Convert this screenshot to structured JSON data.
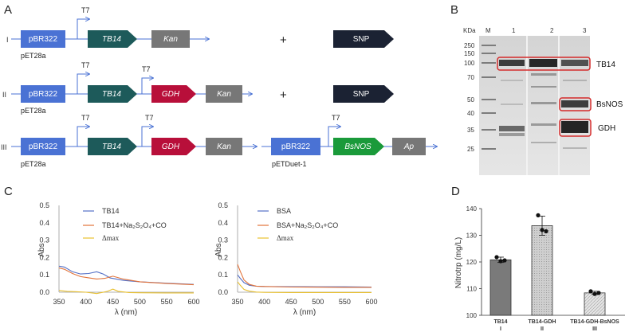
{
  "panel_labels": {
    "a": "A",
    "b": "B",
    "c": "C",
    "d": "D"
  },
  "panel_a": {
    "row_markers": [
      "I",
      "II",
      "III"
    ],
    "promoter": "T7",
    "backbone": "pBR322",
    "plasmid1": "pET28a",
    "plasmid2": "pETDuet-1",
    "genes": {
      "tb14": "TB14",
      "kan": "Kan",
      "gdh": "GDH",
      "bsnos": "BsNOS",
      "ap": "Ap"
    },
    "plus": "+",
    "snp": "SNP",
    "colors": {
      "backbone": "#4a72d4",
      "tb14": "#1d5a5a",
      "kan": "#777777",
      "gdh": "#b80f3a",
      "bsnos": "#1a9a3a",
      "ap": "#777777",
      "snp": "#1b2233"
    }
  },
  "panel_b": {
    "unit": "KDa",
    "marker_lane": "M",
    "lanes": [
      "1",
      "2",
      "3"
    ],
    "ladder": [
      "250",
      "150",
      "100",
      "70",
      "50",
      "40",
      "35",
      "25"
    ],
    "band_labels": [
      "TB14",
      "BsNOS",
      "GDH"
    ],
    "highlight_color": "#d42a2a"
  },
  "chart_data": [
    {
      "type": "line",
      "xlabel": "λ  (nm)",
      "ylabel": "Abs",
      "xlim": [
        350,
        600
      ],
      "ylim": [
        0,
        0.5
      ],
      "xticks": [
        "350",
        "400",
        "450",
        "500",
        "550",
        "600"
      ],
      "yticks": [
        "0.0",
        "0.1",
        "0.2",
        "0.3",
        "0.4",
        "0.5"
      ],
      "legend_placement": "top-center",
      "series": [
        {
          "name": "TB14",
          "color": "#5470c6",
          "x": [
            350,
            360,
            375,
            390,
            405,
            420,
            432,
            445,
            470,
            500,
            550,
            600
          ],
          "y": [
            0.15,
            0.145,
            0.118,
            0.105,
            0.108,
            0.118,
            0.105,
            0.082,
            0.068,
            0.06,
            0.052,
            0.045
          ]
        },
        {
          "name": "TB14+Na₂S₂O₄+CO",
          "color": "#e2733a",
          "x": [
            350,
            360,
            375,
            390,
            405,
            420,
            435,
            450,
            470,
            500,
            550,
            600
          ],
          "y": [
            0.14,
            0.132,
            0.108,
            0.09,
            0.083,
            0.076,
            0.08,
            0.092,
            0.075,
            0.06,
            0.05,
            0.043
          ]
        },
        {
          "name": "Δmax",
          "color": "#e8c030",
          "x": [
            350,
            365,
            380,
            400,
            420,
            440,
            450,
            460,
            480,
            500,
            550,
            600
          ],
          "y": [
            0.01,
            0.005,
            0.003,
            0.0,
            -0.008,
            0.005,
            0.018,
            0.005,
            -0.002,
            -0.003,
            -0.004,
            -0.004
          ]
        }
      ]
    },
    {
      "type": "line",
      "xlabel": "λ  (nm)",
      "ylabel": "Abs",
      "xlim": [
        350,
        600
      ],
      "ylim": [
        0,
        0.5
      ],
      "xticks": [
        "350",
        "400",
        "450",
        "500",
        "550",
        "600"
      ],
      "yticks": [
        "0.0",
        "0.1",
        "0.2",
        "0.3",
        "0.4",
        "0.5"
      ],
      "legend_placement": "top-center",
      "series": [
        {
          "name": "BSA",
          "color": "#5470c6",
          "x": [
            350,
            355,
            362,
            372,
            385,
            400,
            450,
            500,
            550,
            600
          ],
          "y": [
            0.1,
            0.08,
            0.055,
            0.04,
            0.035,
            0.033,
            0.032,
            0.031,
            0.031,
            0.03
          ]
        },
        {
          "name": "BSA+Na₂S₂O₄+CO",
          "color": "#e2733a",
          "x": [
            350,
            355,
            362,
            372,
            385,
            400,
            450,
            500,
            550,
            600
          ],
          "y": [
            0.16,
            0.12,
            0.07,
            0.045,
            0.035,
            0.033,
            0.03,
            0.029,
            0.028,
            0.028
          ]
        },
        {
          "name": "Δmax",
          "color": "#e8c030",
          "x": [
            350,
            355,
            362,
            372,
            385,
            400,
            450,
            500,
            550,
            600
          ],
          "y": [
            0.06,
            0.04,
            0.016,
            0.006,
            0.001,
            -0.001,
            -0.002,
            -0.002,
            -0.002,
            -0.002
          ]
        }
      ]
    },
    {
      "type": "bar",
      "ylabel": "Nitrotrp (mg/L)",
      "ylim": [
        100,
        140
      ],
      "yticks": [
        "100",
        "110",
        "120",
        "130",
        "140"
      ],
      "categories": [
        [
          "TB14",
          "I"
        ],
        [
          "TB14-GDH",
          "II"
        ],
        [
          "TB14-GDH-BsNOS",
          "III"
        ]
      ],
      "values": [
        120.8,
        133.6,
        108.4
      ],
      "errors": [
        1.0,
        3.6,
        0.6
      ],
      "points": [
        [
          121.8,
          120.3,
          120.6
        ],
        [
          137.5,
          132.0,
          131.5
        ],
        [
          109.0,
          108.0,
          108.4
        ]
      ],
      "colors": [
        "#7a7a7a",
        "#c4c4c4",
        "#e2e2e2"
      ]
    }
  ]
}
